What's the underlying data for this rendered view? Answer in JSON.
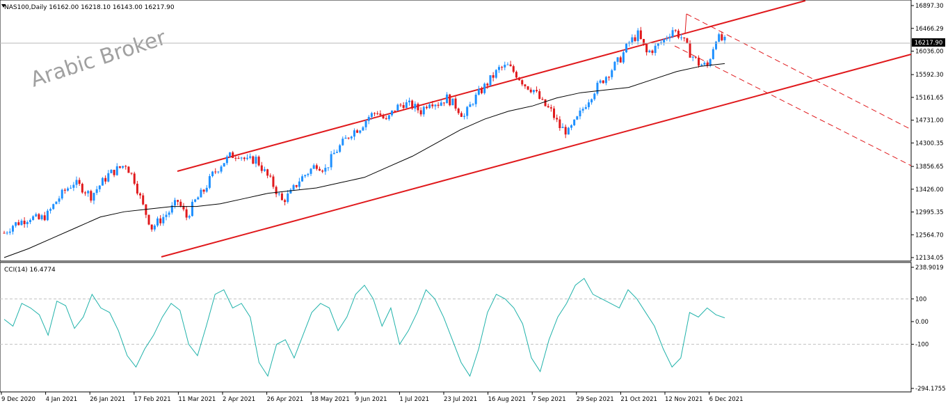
{
  "header": {
    "symbol_line": "NAS100,Daily  16162.00 16218.10 16143.00 16217.90"
  },
  "watermark": "Arabic Broker",
  "price_tag": "16217.90",
  "colors": {
    "up_candle": "#1e90ff",
    "down_candle": "#e0191c",
    "channel": "#e0191c",
    "moving_average": "#000000",
    "cci_line": "#20b2aa",
    "grid_dash": "#c0c0c0",
    "background": "#ffffff"
  },
  "chart_data": [
    {
      "type": "candlestick",
      "symbol": "NAS100",
      "timeframe": "Daily",
      "ohlc_last": {
        "open": 16162.0,
        "high": 16218.1,
        "low": 16143.0,
        "close": 16217.9
      },
      "y_ticks": [
        "16897.30",
        "16466.29",
        "16036.00",
        "15592.30",
        "15161.65",
        "14731.00",
        "14300.35",
        "13856.65",
        "13426.00",
        "12995.35",
        "12564.70",
        "12134.05"
      ],
      "ylim": [
        12134.05,
        16897.3
      ],
      "x_tick_labels": [
        "9 Dec 2020",
        "4 Jan 2021",
        "26 Jan 2021",
        "17 Feb 2021",
        "11 Mar 2021",
        "2 Apr 2021",
        "26 Apr 2021",
        "18 May 2021",
        "9 Jun 2021",
        "1 Jul 2021",
        "23 Jul 2021",
        "16 Aug 2021",
        "7 Sep 2021",
        "29 Sep 2021",
        "21 Oct 2021",
        "12 Nov 2021",
        "6 Dec 2021"
      ],
      "approx_closes": [
        12600,
        12750,
        12820,
        12900,
        12850,
        12950,
        13200,
        13400,
        13550,
        13450,
        13300,
        13500,
        13700,
        13800,
        13900,
        13600,
        13100,
        12700,
        12850,
        13000,
        13200,
        12900,
        13200,
        13400,
        13700,
        13900,
        14050,
        14100,
        13950,
        14000,
        13750,
        13500,
        13200,
        13350,
        13600,
        13750,
        13900,
        13800,
        14100,
        14300,
        14500,
        14600,
        14800,
        14900,
        14700,
        14950,
        15050,
        15000,
        14900,
        15100,
        15050,
        15150,
        15000,
        14800,
        15100,
        15300,
        15500,
        15700,
        15750,
        15600,
        15400,
        15300,
        15050,
        14900,
        14600,
        14500,
        14750,
        15050,
        15300,
        15500,
        15700,
        15900,
        16200,
        16350,
        16000,
        16100,
        16250,
        16450,
        16300,
        16000,
        15800,
        15750,
        16300,
        16217.9
      ],
      "moving_average_approx": [
        12134,
        12300,
        12500,
        12700,
        12900,
        13000,
        13050,
        13100,
        13100,
        13150,
        13250,
        13350,
        13400,
        13450,
        13550,
        13650,
        13850,
        14050,
        14300,
        14550,
        14750,
        14900,
        15000,
        15150,
        15250,
        15300,
        15350,
        15500,
        15650,
        15750,
        15800
      ],
      "channel_upper": {
        "from": [
          "11 Mar 2021",
          13770
        ],
        "to": [
          "6 Dec 2021",
          16700
        ]
      },
      "channel_lower": {
        "from": [
          "17 Feb 2021",
          12200
        ],
        "to": [
          "6 Dec 2021",
          15900
        ]
      }
    },
    {
      "type": "line",
      "name": "CCI(14) 16.4774",
      "ylim": [
        -294.1755,
        238.9019
      ],
      "y_ticks": [
        "238.9019",
        "100",
        "0.00",
        "-100",
        "-294.1755"
      ],
      "levels": [
        100,
        -100
      ],
      "last_value": 16.4774,
      "values": [
        10,
        -20,
        80,
        60,
        30,
        -60,
        90,
        70,
        -30,
        20,
        120,
        60,
        40,
        -40,
        -150,
        -200,
        -120,
        -60,
        20,
        80,
        50,
        -100,
        -150,
        -20,
        120,
        140,
        60,
        80,
        20,
        -180,
        -240,
        -100,
        -80,
        -160,
        -60,
        40,
        80,
        60,
        -40,
        20,
        120,
        160,
        100,
        -20,
        60,
        -100,
        -40,
        40,
        140,
        100,
        20,
        -80,
        -180,
        -240,
        -120,
        40,
        120,
        100,
        60,
        -10,
        -160,
        -220,
        -80,
        20,
        80,
        160,
        190,
        120,
        100,
        80,
        60,
        140,
        100,
        40,
        -20,
        -120,
        -200,
        -160,
        40,
        20,
        60,
        30,
        16.4774
      ]
    }
  ]
}
